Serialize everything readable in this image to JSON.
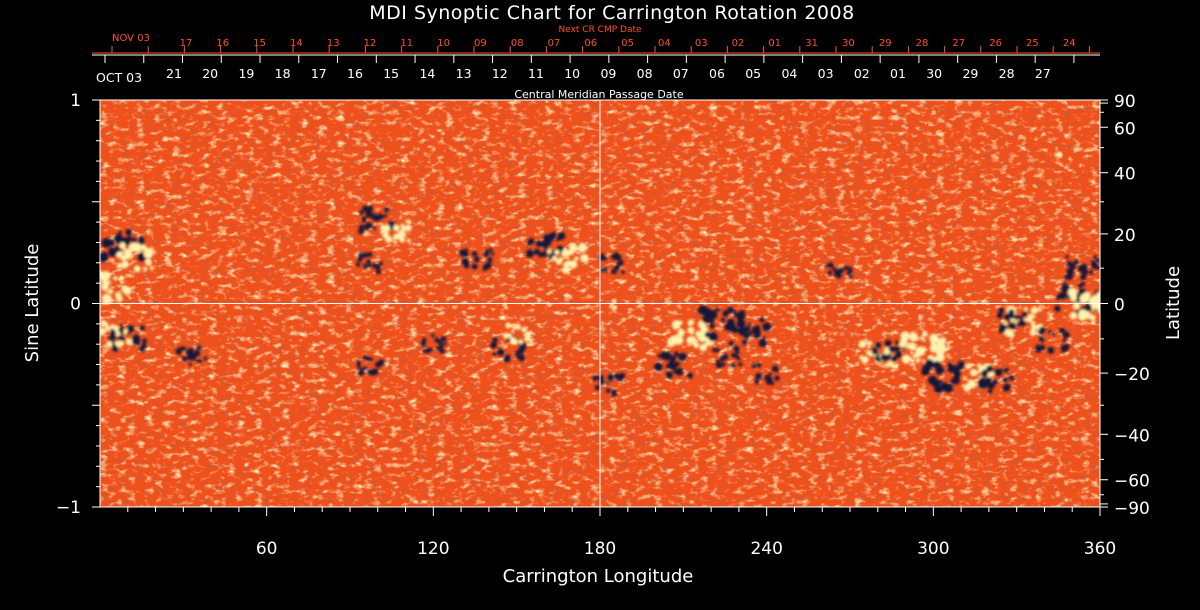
{
  "chart_data": {
    "type": "heatmap",
    "title": "MDI Synoptic Chart for Carrington Rotation 2008",
    "xlabel": "Carrington Longitude",
    "ylabel_left": "Sine Latitude",
    "ylabel_right": "Latitude",
    "xlim": [
      0,
      360
    ],
    "ylim": [
      -1,
      1
    ],
    "x_ticks": [
      60,
      120,
      180,
      240,
      300,
      360
    ],
    "y_left_ticks": [
      {
        "value": 1,
        "label": "1"
      },
      {
        "value": 0,
        "label": "0"
      },
      {
        "value": -1,
        "label": "−1"
      }
    ],
    "y_right_ticks": [
      90,
      60,
      40,
      20,
      0,
      -20,
      -40,
      -60,
      -90
    ],
    "y_right_tick_labels": [
      "90",
      "60",
      "40",
      "20",
      "0",
      "−20",
      "−40",
      "−60",
      "−90"
    ],
    "cmp_date_caption": "Central Meridian Passage Date",
    "cmp_start_label": "OCT 03",
    "cmp_dates": [
      "21",
      "20",
      "19",
      "18",
      "17",
      "16",
      "15",
      "14",
      "13",
      "12",
      "11",
      "10",
      "09",
      "08",
      "07",
      "06",
      "05",
      "04",
      "03",
      "02",
      "01",
      "30",
      "29",
      "28",
      "27"
    ],
    "next_cr_caption": "Next CR CMP Date",
    "next_cr_start_label": "NOV 03",
    "next_cr_dates": [
      "17",
      "16",
      "15",
      "14",
      "13",
      "12",
      "11",
      "10",
      "09",
      "08",
      "07",
      "06",
      "05",
      "04",
      "03",
      "02",
      "01",
      "31",
      "30",
      "29",
      "28",
      "27",
      "26",
      "25",
      "24"
    ],
    "colors": {
      "background": "#000000",
      "field_neutral": "#f0501a",
      "positive_polarity": "#fff3b0",
      "negative_polarity": "#141438",
      "axis": "#ffffff",
      "next_cr_axis": "#ff5020"
    },
    "active_regions": [
      {
        "lon": 8,
        "lat": 0.29,
        "polarity": "negative",
        "strength": 1.0
      },
      {
        "lon": 14,
        "lat": 0.22,
        "polarity": "positive",
        "strength": 0.9
      },
      {
        "lon": 3,
        "lat": 0.08,
        "polarity": "positive",
        "strength": 0.9
      },
      {
        "lon": 10,
        "lat": -0.17,
        "polarity": "negative",
        "strength": 0.8
      },
      {
        "lon": 5,
        "lat": -0.15,
        "polarity": "positive",
        "strength": 0.6
      },
      {
        "lon": 33,
        "lat": -0.26,
        "polarity": "negative",
        "strength": 0.6
      },
      {
        "lon": 100,
        "lat": 0.41,
        "polarity": "negative",
        "strength": 0.7
      },
      {
        "lon": 106,
        "lat": 0.35,
        "polarity": "positive",
        "strength": 0.6
      },
      {
        "lon": 97,
        "lat": 0.2,
        "polarity": "negative",
        "strength": 0.5
      },
      {
        "lon": 136,
        "lat": 0.22,
        "polarity": "negative",
        "strength": 0.6
      },
      {
        "lon": 160,
        "lat": 0.28,
        "polarity": "negative",
        "strength": 0.8
      },
      {
        "lon": 168,
        "lat": 0.22,
        "polarity": "positive",
        "strength": 0.8
      },
      {
        "lon": 98,
        "lat": -0.3,
        "polarity": "negative",
        "strength": 0.5
      },
      {
        "lon": 147,
        "lat": -0.23,
        "polarity": "negative",
        "strength": 0.6
      },
      {
        "lon": 151,
        "lat": -0.15,
        "polarity": "positive",
        "strength": 0.5
      },
      {
        "lon": 120,
        "lat": -0.2,
        "polarity": "negative",
        "strength": 0.4
      },
      {
        "lon": 185,
        "lat": 0.2,
        "polarity": "negative",
        "strength": 0.5
      },
      {
        "lon": 213,
        "lat": -0.15,
        "polarity": "positive",
        "strength": 1.0
      },
      {
        "lon": 224,
        "lat": -0.1,
        "polarity": "negative",
        "strength": 1.0
      },
      {
        "lon": 234,
        "lat": -0.13,
        "polarity": "negative",
        "strength": 0.9
      },
      {
        "lon": 206,
        "lat": -0.3,
        "polarity": "negative",
        "strength": 0.8
      },
      {
        "lon": 183,
        "lat": -0.4,
        "polarity": "negative",
        "strength": 0.5
      },
      {
        "lon": 280,
        "lat": -0.25,
        "polarity": "positive",
        "strength": 0.7
      },
      {
        "lon": 284,
        "lat": -0.24,
        "polarity": "negative",
        "strength": 0.6
      },
      {
        "lon": 296,
        "lat": -0.22,
        "polarity": "positive",
        "strength": 1.0
      },
      {
        "lon": 304,
        "lat": -0.36,
        "polarity": "negative",
        "strength": 0.9
      },
      {
        "lon": 317,
        "lat": -0.36,
        "polarity": "positive",
        "strength": 0.7
      },
      {
        "lon": 323,
        "lat": -0.38,
        "polarity": "negative",
        "strength": 0.7
      },
      {
        "lon": 332,
        "lat": -0.09,
        "polarity": "positive",
        "strength": 0.8
      },
      {
        "lon": 328,
        "lat": -0.08,
        "polarity": "negative",
        "strength": 0.6
      },
      {
        "lon": 343,
        "lat": -0.18,
        "polarity": "negative",
        "strength": 0.6
      },
      {
        "lon": 352,
        "lat": 0.03,
        "polarity": "negative",
        "strength": 1.0
      },
      {
        "lon": 357,
        "lat": 0.0,
        "polarity": "positive",
        "strength": 1.0
      },
      {
        "lon": 354,
        "lat": 0.18,
        "polarity": "negative",
        "strength": 0.7
      },
      {
        "lon": 266,
        "lat": 0.17,
        "polarity": "negative",
        "strength": 0.4
      },
      {
        "lon": 226,
        "lat": -0.26,
        "polarity": "negative",
        "strength": 0.5
      },
      {
        "lon": 240,
        "lat": -0.35,
        "polarity": "negative",
        "strength": 0.5
      }
    ]
  }
}
